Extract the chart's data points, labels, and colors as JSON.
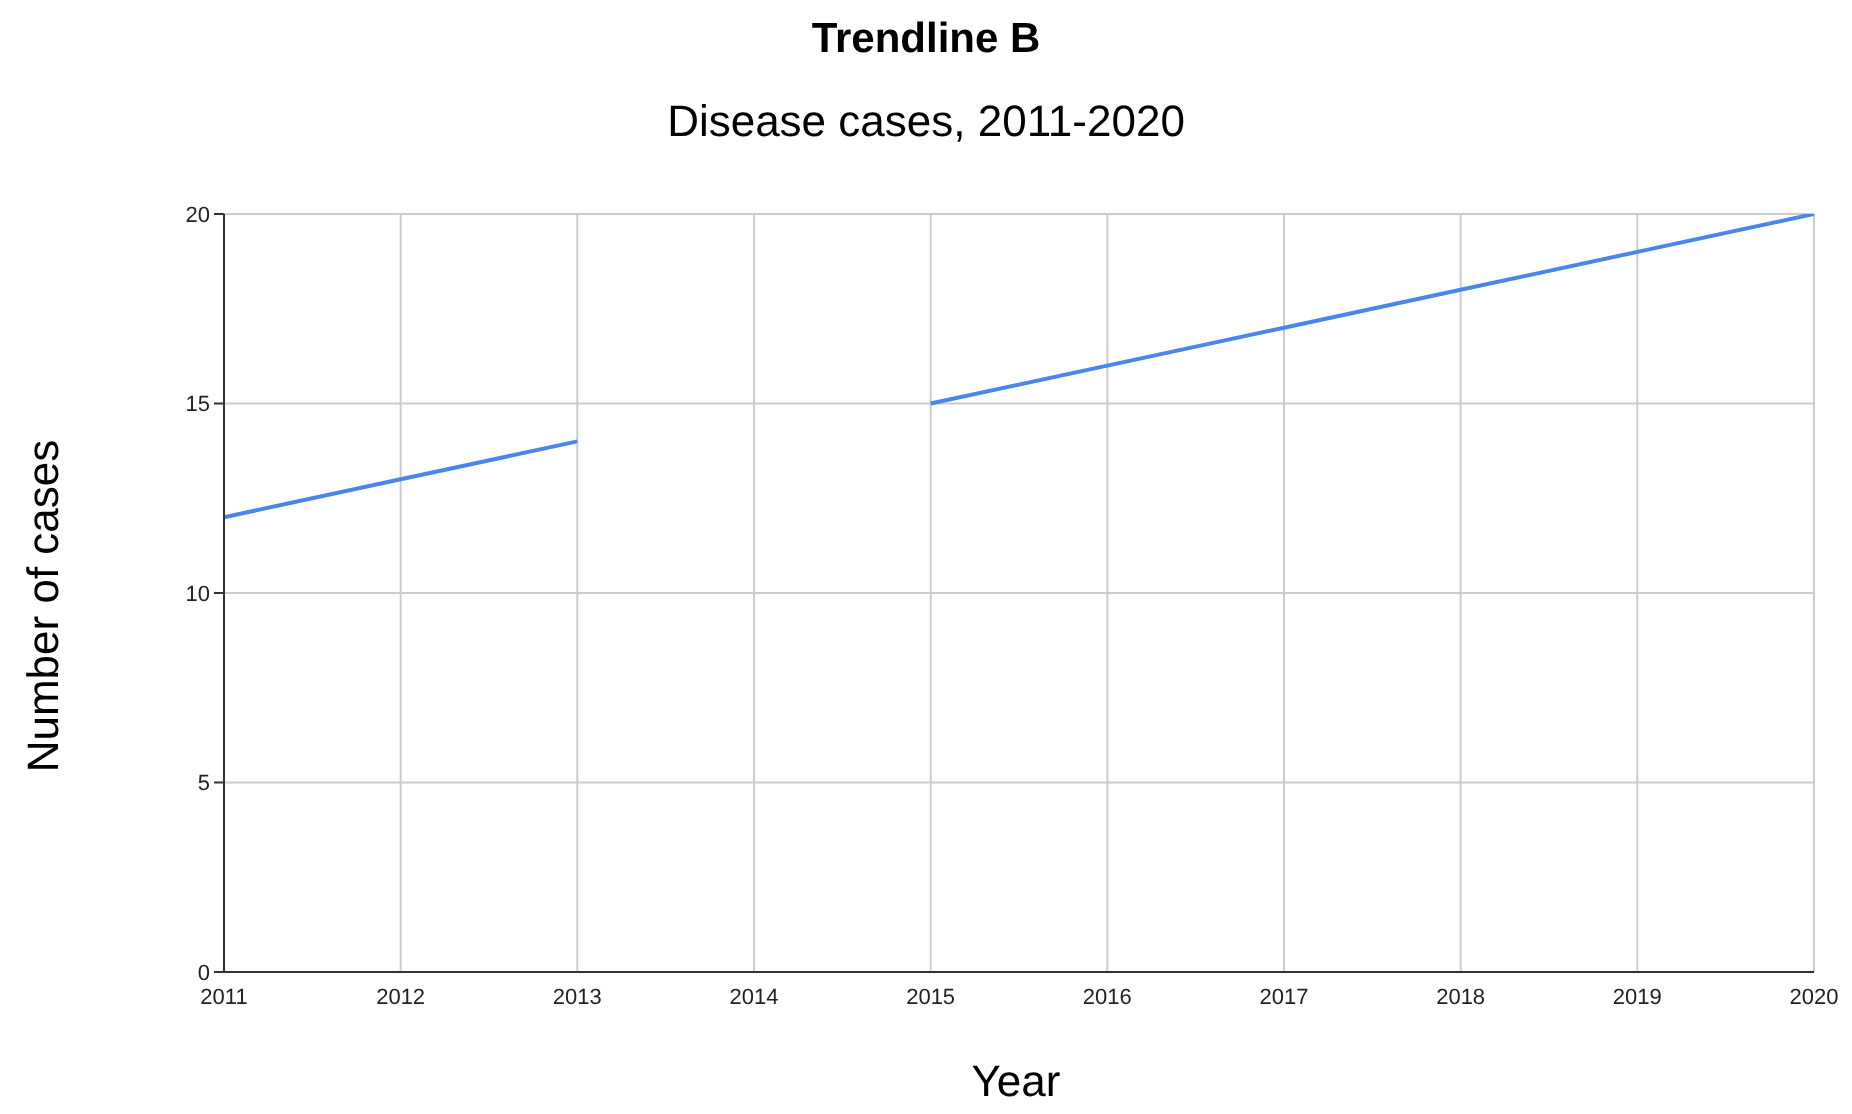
{
  "chart_data": {
    "type": "line",
    "title": "Trendline B",
    "subtitle": "Disease cases, 2011-2020",
    "xlabel": "Year",
    "ylabel": "Number of cases",
    "x": [
      2011,
      2012,
      2013,
      2014,
      2015,
      2016,
      2017,
      2018,
      2019,
      2020
    ],
    "series": [
      {
        "color": "#4a86e8",
        "values": [
          12,
          13,
          14,
          null,
          15,
          16,
          17,
          18,
          19,
          20
        ]
      }
    ],
    "xlim": [
      2011,
      2020
    ],
    "xticks": [
      2011,
      2012,
      2013,
      2014,
      2015,
      2016,
      2017,
      2018,
      2019,
      2020
    ],
    "ylim": [
      0,
      20
    ],
    "yticks": [
      0,
      5,
      10,
      15,
      20
    ],
    "grid": true,
    "legend": false,
    "marker": "none",
    "line_style": "solid"
  }
}
